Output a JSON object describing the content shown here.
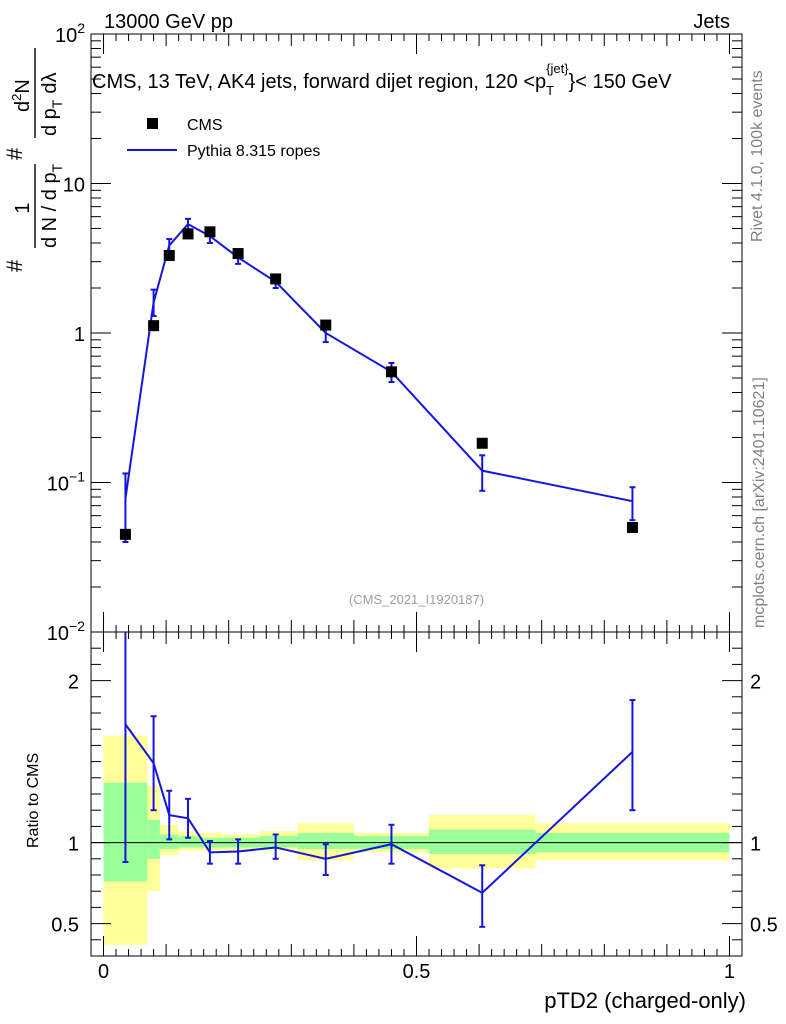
{
  "header": {
    "left": "13000 GeV pp",
    "right": "Jets"
  },
  "side_labels": {
    "rivet": "Rivet 4.1.0,  100k events",
    "mcplots": "mcplots.cern.ch [arXiv:2401.10621]"
  },
  "chart_data": [
    {
      "type": "scatter",
      "panel": "main",
      "title_parts": {
        "prefix": "CMS, 13 TeV, AK4 jets, forward dijet region, 120 <p",
        "sub": "T",
        "sup": "{jet}",
        "suffix": "}< 150 GeV"
      },
      "ylabel_parts": {
        "hash": "#",
        "one": "1",
        "den": "d N / d p",
        "den_sub": "T",
        "hash2": "#",
        "num": "d",
        "num_sup": "2",
        "num2": "N",
        "den2": "d p",
        "den2_sub": "T",
        "den2_tail": "dλ"
      },
      "yscale": "log",
      "ylim": [
        0.01,
        100
      ],
      "y_ticks": [
        {
          "value": 100,
          "base": "10",
          "exp": "2"
        },
        {
          "value": 10,
          "base": "10",
          "exp": ""
        },
        {
          "value": 1,
          "base": "1",
          "exp": ""
        },
        {
          "value": 0.1,
          "base": "10",
          "exp": "−1"
        },
        {
          "value": 0.01,
          "base": "10",
          "exp": "−2"
        }
      ],
      "xlim": [
        -0.02,
        1.02
      ],
      "watermark": "(CMS_2021_I1920187)",
      "legend": {
        "position": "top-left",
        "entries": [
          "CMS",
          "Pythia 8.315 ropes"
        ]
      },
      "series": [
        {
          "name": "CMS",
          "style": "markers",
          "color": "#000000",
          "x": [
            0.035,
            0.08,
            0.105,
            0.135,
            0.17,
            0.215,
            0.275,
            0.355,
            0.46,
            0.605,
            0.845
          ],
          "y": [
            0.045,
            1.12,
            3.3,
            4.6,
            4.75,
            3.4,
            2.3,
            1.13,
            0.55,
            0.183,
            0.05
          ]
        },
        {
          "name": "Pythia 8.315 ropes",
          "style": "line",
          "color": "#1515e0",
          "x": [
            0.035,
            0.08,
            0.105,
            0.135,
            0.17,
            0.215,
            0.275,
            0.355,
            0.46,
            0.605,
            0.845
          ],
          "y": [
            0.078,
            1.6,
            3.85,
            5.35,
            4.45,
            3.2,
            2.2,
            1.0,
            0.55,
            0.12,
            0.075
          ],
          "ylow": [
            0.04,
            1.3,
            3.45,
            4.95,
            4.0,
            2.9,
            2.0,
            0.87,
            0.47,
            0.088,
            0.056
          ],
          "yhigh": [
            0.115,
            1.95,
            4.25,
            5.8,
            4.9,
            3.55,
            2.45,
            1.15,
            0.63,
            0.152,
            0.093
          ]
        }
      ]
    },
    {
      "type": "line",
      "panel": "ratio",
      "ylabel": "Ratio to CMS",
      "xlabel": "pTD2 (charged-only)",
      "ylim": [
        0.3,
        2.3
      ],
      "y_ticks": [
        0.5,
        1,
        2
      ],
      "y_tick_labels": [
        "0.5",
        "1",
        "2"
      ],
      "xlim": [
        -0.02,
        1.02
      ],
      "x_ticks": [
        0,
        0.5,
        1
      ],
      "x_tick_labels": [
        "0",
        "0.5",
        "1"
      ],
      "reference_line": 1,
      "bands": {
        "inner_color": "#99ff99",
        "outer_color": "#ffff99",
        "bins": [
          {
            "x0": 0.0,
            "x1": 0.07,
            "inner": [
              0.76,
              1.37
            ],
            "outer": [
              0.37,
              1.66
            ]
          },
          {
            "x0": 0.07,
            "x1": 0.09,
            "inner": [
              0.9,
              1.14
            ],
            "outer": [
              0.7,
              1.35
            ]
          },
          {
            "x0": 0.09,
            "x1": 0.12,
            "inner": [
              0.96,
              1.05
            ],
            "outer": [
              0.92,
              1.11
            ]
          },
          {
            "x0": 0.12,
            "x1": 0.15,
            "inner": [
              0.97,
              1.04
            ],
            "outer": [
              0.95,
              1.07
            ]
          },
          {
            "x0": 0.15,
            "x1": 0.19,
            "inner": [
              0.97,
              1.03
            ],
            "outer": [
              0.95,
              1.06
            ]
          },
          {
            "x0": 0.19,
            "x1": 0.25,
            "inner": [
              0.97,
              1.03
            ],
            "outer": [
              0.95,
              1.05
            ]
          },
          {
            "x0": 0.25,
            "x1": 0.31,
            "inner": [
              0.97,
              1.04
            ],
            "outer": [
              0.95,
              1.07
            ]
          },
          {
            "x0": 0.31,
            "x1": 0.4,
            "inner": [
              0.96,
              1.06
            ],
            "outer": [
              0.89,
              1.12
            ]
          },
          {
            "x0": 0.4,
            "x1": 0.52,
            "inner": [
              0.96,
              1.04
            ],
            "outer": [
              0.94,
              1.06
            ]
          },
          {
            "x0": 0.52,
            "x1": 0.69,
            "inner": [
              0.93,
              1.08
            ],
            "outer": [
              0.84,
              1.17
            ]
          },
          {
            "x0": 0.69,
            "x1": 1.0,
            "inner": [
              0.94,
              1.06
            ],
            "outer": [
              0.89,
              1.12
            ]
          }
        ]
      },
      "series": [
        {
          "name": "Pythia 8.315 ropes / CMS",
          "color": "#1515e0",
          "x": [
            0.035,
            0.08,
            0.105,
            0.135,
            0.17,
            0.215,
            0.275,
            0.355,
            0.46,
            0.605,
            0.845
          ],
          "y": [
            1.73,
            1.49,
            1.17,
            1.15,
            0.94,
            0.945,
            0.97,
            0.9,
            0.99,
            0.69,
            1.56
          ],
          "ylow": [
            0.88,
            1.2,
            1.02,
            1.03,
            0.87,
            0.87,
            0.9,
            0.8,
            0.87,
            0.48,
            1.2
          ],
          "yhigh": [
            2.3,
            1.78,
            1.32,
            1.27,
            1.01,
            1.02,
            1.05,
            0.99,
            1.11,
            0.86,
            1.88
          ]
        }
      ]
    }
  ]
}
